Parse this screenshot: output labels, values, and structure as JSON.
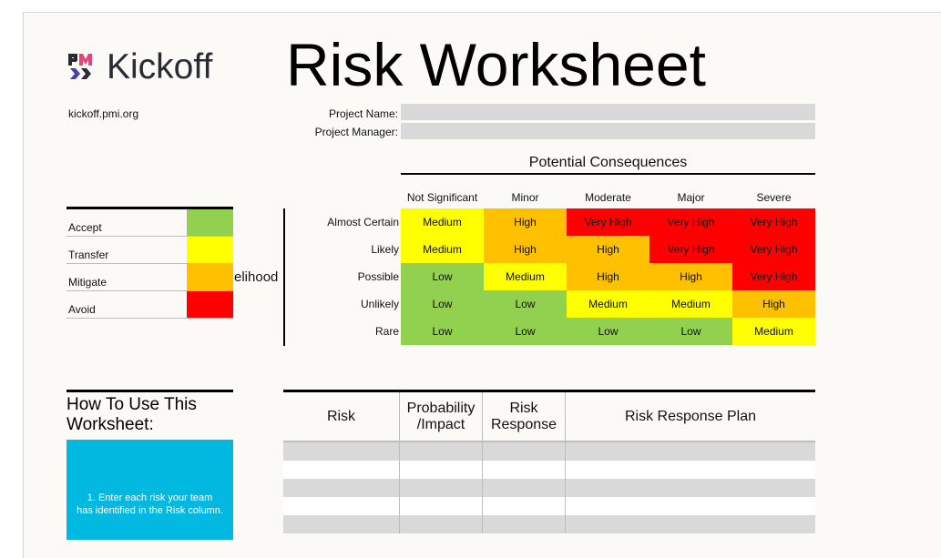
{
  "logo": {
    "text": "Kickoff",
    "site": "kickoff.pmi.org"
  },
  "title": "Risk Worksheet",
  "fields": [
    {
      "label": "Project Name:",
      "value": ""
    },
    {
      "label": "Project Manager:",
      "value": ""
    }
  ],
  "legend": [
    {
      "label": "Accept",
      "color": "#92d050"
    },
    {
      "label": "Transfer",
      "color": "#ffff00"
    },
    {
      "label": "Mitigate",
      "color": "#ffc000"
    },
    {
      "label": "Avoid",
      "color": "#ff0000"
    }
  ],
  "matrix": {
    "consequences_label": "Potential Consequences",
    "likelihood_label": "elihood",
    "columns": [
      "Not Significant",
      "Minor",
      "Moderate",
      "Major",
      "Severe"
    ],
    "rows": [
      "Almost Certain",
      "Likely",
      "Possible",
      "Unlikely",
      "Rare"
    ],
    "cells": [
      [
        "Medium",
        "High",
        "Very High",
        "Very High",
        "Very High"
      ],
      [
        "Medium",
        "High",
        "High",
        "Very High",
        "Very High"
      ],
      [
        "Low",
        "Medium",
        "High",
        "High",
        "Very High"
      ],
      [
        "Low",
        "Low",
        "Medium",
        "Medium",
        "High"
      ],
      [
        "Low",
        "Low",
        "Low",
        "Low",
        "Medium"
      ]
    ],
    "level_colors": {
      "Low": "#92d050",
      "Medium": "#ffff00",
      "High": "#ffc000",
      "Very High": "#ff0000"
    }
  },
  "howto": {
    "title_line1": "How To Use This",
    "title_line2": "Worksheet:",
    "step1_line1": "1. Enter each risk your team",
    "step1_line2": "has identified in the Risk column."
  },
  "risk_table": {
    "headers": [
      "Risk",
      "Probability\n/Impact",
      "Risk\nResponse",
      "Risk Response Plan"
    ],
    "rows": [
      [
        "",
        "",
        "",
        ""
      ],
      [
        "",
        "",
        "",
        ""
      ],
      [
        "",
        "",
        "",
        ""
      ],
      [
        "",
        "",
        "",
        ""
      ],
      [
        "",
        "",
        "",
        ""
      ]
    ]
  }
}
